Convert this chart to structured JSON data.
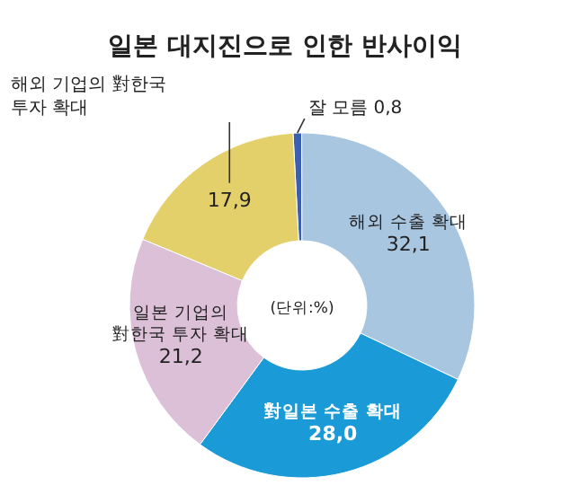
{
  "chart_data": {
    "type": "donut",
    "title": "일본 대지진으로 인한 반사이익",
    "categories": [
      "잘 모름",
      "해외 수출 확대",
      "對일본 수출 확대",
      "일본 기업의 對한국 투자 확대",
      "해외 기업의 對한국 투자 확대"
    ],
    "values": [
      0.8,
      32.1,
      28.0,
      21.2,
      17.9
    ],
    "value_labels": [
      "0,8",
      "32,1",
      "28,0",
      "21,2",
      "17,9"
    ],
    "colors": [
      "#3a5fb0",
      "#a9c6e0",
      "#1a9bd7",
      "#dcc0d8",
      "#e3d06a"
    ],
    "annotations": [
      "(단위:%)"
    ]
  }
}
